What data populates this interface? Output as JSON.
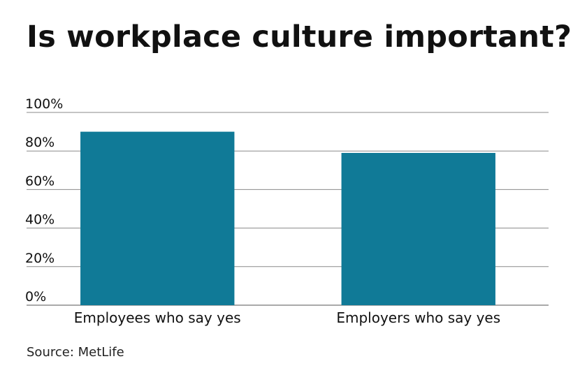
{
  "chart_data": {
    "type": "bar",
    "title": "Is workplace culture important?",
    "categories": [
      "Employees who say yes",
      "Employers who say yes"
    ],
    "values": [
      90,
      79
    ],
    "ylim": [
      0,
      100
    ],
    "yticks": [
      0,
      20,
      40,
      60,
      80,
      100
    ],
    "ytick_labels": [
      "0%",
      "20%",
      "40%",
      "60%",
      "80%",
      "100%"
    ],
    "xlabel": "",
    "ylabel": "",
    "grid": true,
    "bar_color": "#107a97",
    "source": "Source: MetLife"
  }
}
